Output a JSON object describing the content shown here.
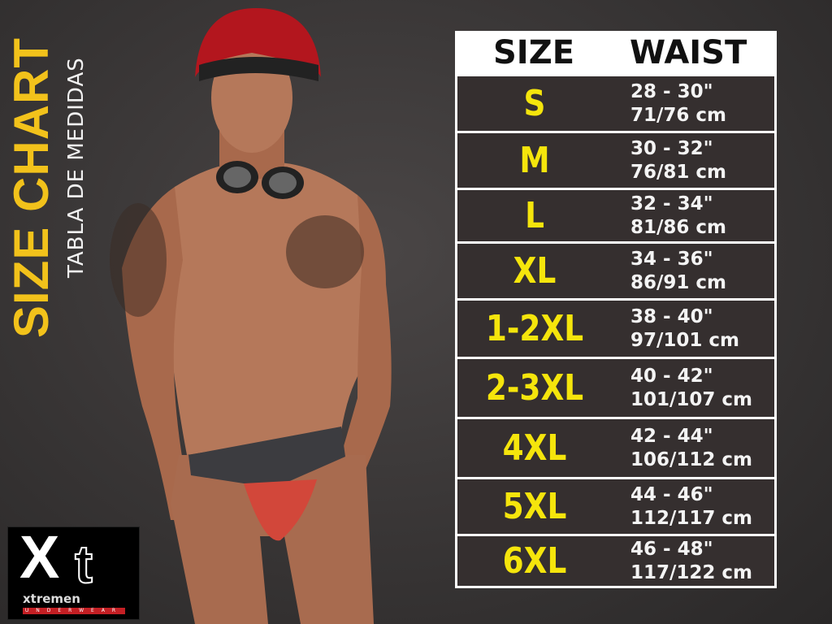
{
  "title": "SIZE CHART",
  "subtitle": "TABLA DE MEDIDAS",
  "logo": {
    "mark": "Xt",
    "brand": "xtremen",
    "tagline": "UNDERWEAR"
  },
  "table": {
    "headers": [
      "SIZE",
      "WAIST"
    ],
    "rows": [
      {
        "size": "S",
        "inches": "28 - 30\"",
        "cm": "71/76 cm"
      },
      {
        "size": "M",
        "inches": "30 - 32\"",
        "cm": "76/81 cm"
      },
      {
        "size": "L",
        "inches": "32 - 34\"",
        "cm": "81/86 cm"
      },
      {
        "size": "XL",
        "inches": "34 - 36\"",
        "cm": "86/91 cm"
      },
      {
        "size": "1-2XL",
        "inches": "38 - 40\"",
        "cm": "97/101 cm"
      },
      {
        "size": "2-3XL",
        "inches": "40 - 42\"",
        "cm": "101/107 cm"
      },
      {
        "size": "4XL",
        "inches": "42 - 44\"",
        "cm": "106/112 cm"
      },
      {
        "size": "5XL",
        "inches": "44 - 46\"",
        "cm": "112/117 cm"
      },
      {
        "size": "6XL",
        "inches": "46 - 48\"",
        "cm": "117/122 cm"
      }
    ]
  },
  "colors": {
    "accent": "#f5e50c",
    "title": "#f2c21b",
    "row_bg": "#352f2f",
    "logo_red": "#c41f24"
  }
}
